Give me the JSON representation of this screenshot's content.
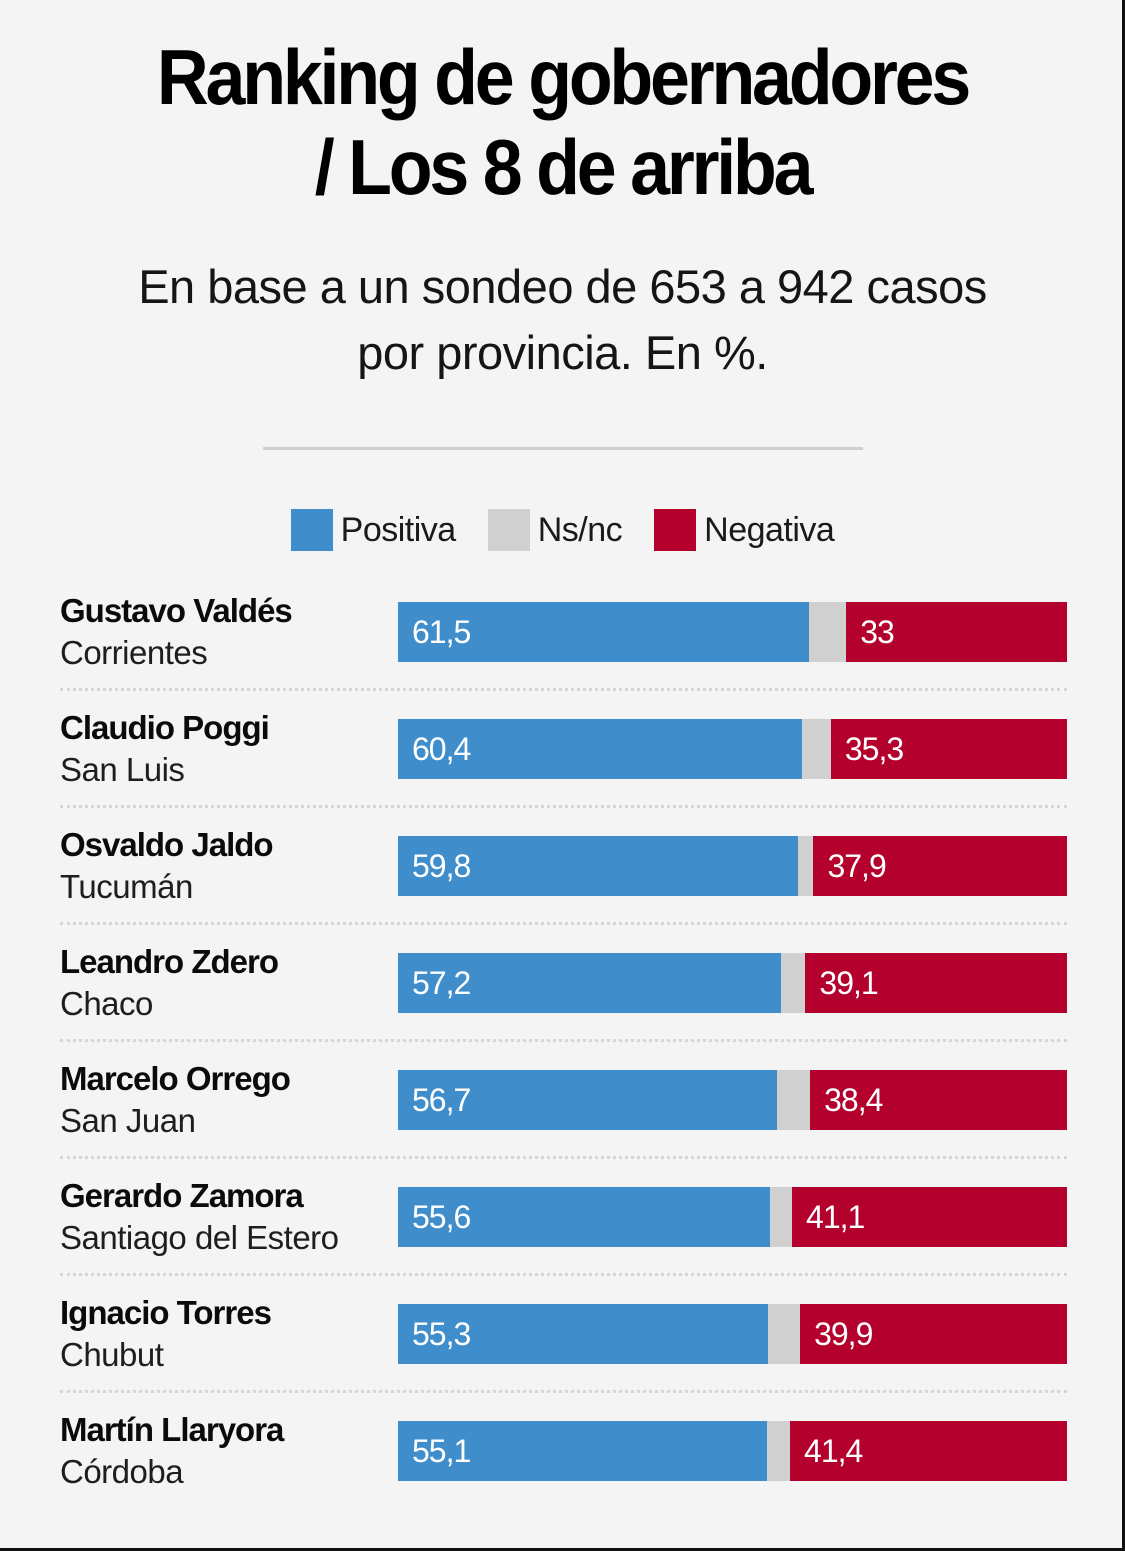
{
  "header": {
    "title_lines": [
      "Ranking de gobernadores",
      "/ Los 8 de arriba"
    ],
    "subtitle_lines": [
      "En base a un sondeo de 653 a 942 casos",
      "por provincia. En %."
    ]
  },
  "colors": {
    "positive": "#3f8ecb",
    "nsnc": "#d0d0d0",
    "negative": "#b4002d"
  },
  "legend": [
    {
      "key": "positive",
      "label": "Positiva"
    },
    {
      "key": "nsnc",
      "label": "Ns/nc"
    },
    {
      "key": "negative",
      "label": "Negativa"
    }
  ],
  "chart_data": {
    "type": "bar",
    "orientation": "horizontal-stacked",
    "title": "Ranking de gobernadores / Los 8 de arriba",
    "subtitle": "En base a un sondeo de 653 a 942 casos por provincia. En %.",
    "unit": "%",
    "xlim": [
      0,
      100
    ],
    "grid": false,
    "legend_position": "top-center",
    "categories": [
      {
        "name": "Gustavo Valdés",
        "province": "Corrientes"
      },
      {
        "name": "Claudio Poggi",
        "province": "San Luis"
      },
      {
        "name": "Osvaldo Jaldo",
        "province": "Tucumán"
      },
      {
        "name": "Leandro Zdero",
        "province": "Chaco"
      },
      {
        "name": "Marcelo Orrego",
        "province": "San Juan"
      },
      {
        "name": "Gerardo Zamora",
        "province": "Santiago del Estero"
      },
      {
        "name": "Ignacio Torres",
        "province": "Chubut"
      },
      {
        "name": "Martín Llaryora",
        "province": "Córdoba"
      }
    ],
    "series": [
      {
        "name": "Positiva",
        "values": [
          61.5,
          60.4,
          59.8,
          57.2,
          56.7,
          55.6,
          55.3,
          55.1
        ],
        "labels": [
          "61,5",
          "60,4",
          "59,8",
          "57,2",
          "56,7",
          "55,6",
          "55,3",
          "55,1"
        ]
      },
      {
        "name": "Ns/nc",
        "values": [
          5.5,
          4.3,
          2.3,
          3.7,
          4.9,
          3.3,
          4.8,
          3.5
        ],
        "labels": []
      },
      {
        "name": "Negativa",
        "values": [
          33,
          35.3,
          37.9,
          39.1,
          38.4,
          41.1,
          39.9,
          41.4
        ],
        "labels": [
          "33",
          "35,3",
          "37,9",
          "39,1",
          "38,4",
          "41,1",
          "39,9",
          "41,4"
        ]
      }
    ]
  }
}
